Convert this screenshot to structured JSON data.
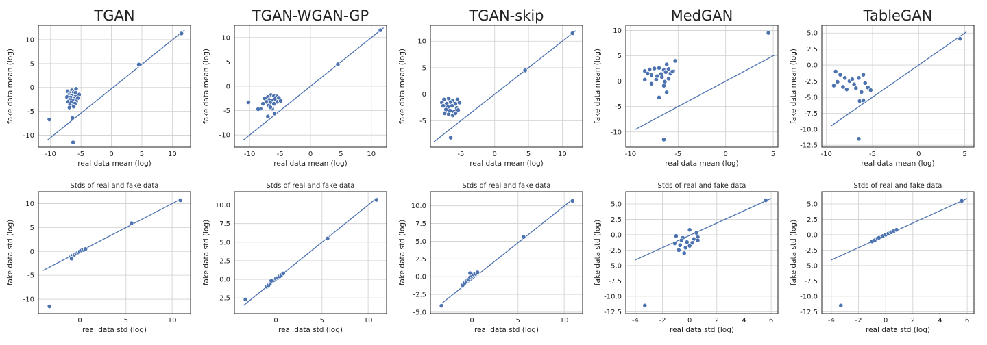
{
  "chart_data": [
    {
      "type": "scatter",
      "title": "TGAN",
      "xlabel": "real data mean (log)",
      "ylabel": "fake data mean (log)",
      "xlim": [
        -12,
        13
      ],
      "ylim": [
        -12.5,
        13
      ],
      "xticks": [
        -10,
        -5,
        0,
        5,
        10
      ],
      "yticks": [
        -10,
        -5,
        0,
        5,
        10
      ],
      "grid": true,
      "diagonal": [
        [
          -10.5,
          -11
        ],
        [
          12,
          12
        ]
      ],
      "points": [
        [
          -6.5,
          -0.6
        ],
        [
          -5.8,
          -0.3
        ],
        [
          -7.2,
          -0.8
        ],
        [
          -6.8,
          -1.2
        ],
        [
          -6.2,
          -1.0
        ],
        [
          -5.6,
          -1.4
        ],
        [
          -7.0,
          -1.6
        ],
        [
          -6.5,
          -1.7
        ],
        [
          -5.9,
          -1.9
        ],
        [
          -5.3,
          -1.5
        ],
        [
          -7.3,
          -2.0
        ],
        [
          -6.7,
          -2.1
        ],
        [
          -6.1,
          -2.3
        ],
        [
          -5.5,
          -2.2
        ],
        [
          -6.9,
          -2.6
        ],
        [
          -6.3,
          -2.7
        ],
        [
          -5.8,
          -2.9
        ],
        [
          -7.1,
          -3.0
        ],
        [
          -6.6,
          -3.2
        ],
        [
          -6.0,
          -3.4
        ],
        [
          -6.8,
          -3.7
        ],
        [
          -6.4,
          -3.9
        ],
        [
          -6.9,
          -4.2
        ],
        [
          -6.2,
          -4.0
        ],
        [
          -5.9,
          -1.1
        ],
        [
          -10.2,
          -6.7
        ],
        [
          -6.4,
          -6.4
        ],
        [
          -6.3,
          -11.5
        ],
        [
          4.5,
          4.8
        ],
        [
          11.5,
          11.3
        ]
      ]
    },
    {
      "type": "scatter",
      "title": "TGAN-WGAN-GP",
      "xlabel": "real data mean (log)",
      "ylabel": "fake data mean (log)",
      "xlim": [
        -12.5,
        12.5
      ],
      "ylim": [
        -12.5,
        12.5
      ],
      "xticks": [
        -10,
        -5,
        0,
        5,
        10
      ],
      "yticks": [
        -10,
        -5,
        0,
        5,
        10
      ],
      "grid": true,
      "diagonal": [
        [
          -11,
          -11
        ],
        [
          12,
          12
        ]
      ],
      "points": [
        [
          -6.5,
          -1.8
        ],
        [
          -6.0,
          -2.0
        ],
        [
          -7.0,
          -2.2
        ],
        [
          -5.5,
          -2.1
        ],
        [
          -7.5,
          -2.5
        ],
        [
          -6.8,
          -2.8
        ],
        [
          -6.2,
          -3.0
        ],
        [
          -5.8,
          -2.6
        ],
        [
          -5.2,
          -2.4
        ],
        [
          -7.2,
          -3.2
        ],
        [
          -6.6,
          -3.4
        ],
        [
          -6.0,
          -3.6
        ],
        [
          -5.4,
          -3.2
        ],
        [
          -4.9,
          -3.0
        ],
        [
          -7.8,
          -3.6
        ],
        [
          -6.9,
          -4.0
        ],
        [
          -8.2,
          -4.6
        ],
        [
          -8.6,
          -4.7
        ],
        [
          -6.3,
          -4.6
        ],
        [
          -5.9,
          -5.6
        ],
        [
          -7.0,
          -6.2
        ],
        [
          -6.6,
          -4.3
        ],
        [
          -10.2,
          -3.3
        ],
        [
          4.5,
          4.5
        ],
        [
          11.5,
          11.5
        ]
      ]
    },
    {
      "type": "scatter",
      "title": "TGAN-skip",
      "xlabel": "real data mean (log)",
      "ylabel": "fake data mean (log)",
      "xlim": [
        -9.5,
        13
      ],
      "ylim": [
        -10,
        13
      ],
      "xticks": [
        -5,
        0,
        5,
        10
      ],
      "yticks": [
        -5,
        0,
        5,
        10
      ],
      "grid": true,
      "diagonal": [
        [
          -9,
          -9
        ],
        [
          12,
          12
        ]
      ],
      "points": [
        [
          -7.5,
          -1.0
        ],
        [
          -6.8,
          -0.8
        ],
        [
          -6.2,
          -1.2
        ],
        [
          -5.5,
          -1.0
        ],
        [
          -7.8,
          -1.6
        ],
        [
          -7.1,
          -1.8
        ],
        [
          -6.5,
          -1.5
        ],
        [
          -5.8,
          -1.8
        ],
        [
          -5.2,
          -1.6
        ],
        [
          -7.6,
          -2.2
        ],
        [
          -6.9,
          -2.4
        ],
        [
          -6.3,
          -2.2
        ],
        [
          -5.6,
          -2.6
        ],
        [
          -7.2,
          -2.9
        ],
        [
          -6.6,
          -3.1
        ],
        [
          -6.0,
          -3.3
        ],
        [
          -5.4,
          -3.0
        ],
        [
          -7.4,
          -3.6
        ],
        [
          -6.8,
          -3.8
        ],
        [
          -6.2,
          -4.0
        ],
        [
          -5.8,
          -3.6
        ],
        [
          -6.5,
          -8.2
        ],
        [
          4.5,
          4.5
        ],
        [
          11.5,
          11.5
        ]
      ]
    },
    {
      "type": "scatter",
      "title": "MedGAN",
      "xlabel": "real data mean (log)",
      "ylabel": "fake data mean (log)",
      "xlim": [
        -10.5,
        5.5
      ],
      "ylim": [
        -13,
        11
      ],
      "xticks": [
        -10,
        -5,
        0,
        5
      ],
      "yticks": [
        -10,
        -5,
        0,
        5,
        10
      ],
      "grid": true,
      "diagonal": [
        [
          -9.5,
          -9.5
        ],
        [
          5.2,
          5.2
        ]
      ],
      "points": [
        [
          -8.5,
          2.0
        ],
        [
          -8.0,
          2.3
        ],
        [
          -7.5,
          2.5
        ],
        [
          -7.0,
          2.6
        ],
        [
          -6.5,
          2.2
        ],
        [
          -6.0,
          2.4
        ],
        [
          -5.5,
          2.0
        ],
        [
          -8.2,
          1.5
        ],
        [
          -7.8,
          1.2
        ],
        [
          -7.2,
          1.0
        ],
        [
          -6.8,
          1.4
        ],
        [
          -6.3,
          1.8
        ],
        [
          -5.8,
          1.5
        ],
        [
          -5.3,
          4.0
        ],
        [
          -6.2,
          3.3
        ],
        [
          -6.7,
          0.8
        ],
        [
          -7.3,
          0.3
        ],
        [
          -8.5,
          0.3
        ],
        [
          -6.0,
          0.5
        ],
        [
          -5.6,
          1.9
        ],
        [
          -6.4,
          -0.1
        ],
        [
          -7.8,
          -0.5
        ],
        [
          -6.5,
          -0.9
        ],
        [
          -6.2,
          -2.2
        ],
        [
          -7.0,
          -3.2
        ],
        [
          -6.5,
          -11.5
        ],
        [
          4.5,
          9.5
        ]
      ]
    },
    {
      "type": "scatter",
      "title": "TableGAN",
      "xlabel": "real data mean (log)",
      "ylabel": "fake data mean (log)",
      "xlim": [
        -10.5,
        6
      ],
      "ylim": [
        -12.8,
        6.2
      ],
      "xticks": [
        -10,
        -5,
        0,
        5
      ],
      "yticks": [
        -12.5,
        -10.0,
        -7.5,
        -5.0,
        -2.5,
        0.0,
        2.5,
        5.0
      ],
      "grid": true,
      "diagonal": [
        [
          -9.5,
          -9.5
        ],
        [
          5.2,
          5.2
        ]
      ],
      "points": [
        [
          -9.0,
          -1.0
        ],
        [
          -8.5,
          -1.5
        ],
        [
          -8.0,
          -2.0
        ],
        [
          -7.5,
          -2.5
        ],
        [
          -7.0,
          -3.0
        ],
        [
          -6.5,
          -2.0
        ],
        [
          -6.0,
          -1.5
        ],
        [
          -5.5,
          -3.5
        ],
        [
          -9.2,
          -3.2
        ],
        [
          -8.8,
          -2.6
        ],
        [
          -8.2,
          -3.4
        ],
        [
          -7.8,
          -3.8
        ],
        [
          -7.2,
          -2.2
        ],
        [
          -6.8,
          -3.6
        ],
        [
          -6.2,
          -4.2
        ],
        [
          -5.8,
          -2.8
        ],
        [
          -5.2,
          -3.9
        ],
        [
          -6.4,
          -5.6
        ],
        [
          -6.0,
          -5.5
        ],
        [
          -6.5,
          -11.5
        ],
        [
          4.5,
          4.1
        ]
      ]
    },
    {
      "type": "scatter",
      "title": "Stds of real and fake data",
      "xlabel": "real data std (log)",
      "ylabel": "fake data std (log)",
      "xlim": [
        -4.5,
        12
      ],
      "ylim": [
        -13,
        12.5
      ],
      "xticks": [
        0,
        5,
        10
      ],
      "yticks": [
        -10,
        -5,
        0,
        5,
        10
      ],
      "grid": true,
      "diagonal": [
        [
          -4,
          -4
        ],
        [
          11,
          11
        ]
      ],
      "points": [
        [
          -1.0,
          -1.2
        ],
        [
          -0.8,
          -0.9
        ],
        [
          -0.6,
          -0.7
        ],
        [
          -0.4,
          -0.4
        ],
        [
          -0.2,
          -0.2
        ],
        [
          0.0,
          0.0
        ],
        [
          0.2,
          0.2
        ],
        [
          0.4,
          0.3
        ],
        [
          0.6,
          0.5
        ],
        [
          -0.9,
          -1.5
        ],
        [
          5.6,
          5.9
        ],
        [
          10.9,
          10.7
        ],
        [
          -3.3,
          -11.5
        ]
      ]
    },
    {
      "type": "scatter",
      "title": "Stds of real and fake data",
      "xlabel": "real data std (log)",
      "ylabel": "fake data std (log)",
      "xlim": [
        -4.5,
        12
      ],
      "ylim": [
        -4.6,
        11.8
      ],
      "xticks": [
        0,
        5,
        10
      ],
      "yticks": [
        -2.5,
        0.0,
        2.5,
        5.0,
        7.5,
        10.0
      ],
      "grid": true,
      "diagonal": [
        [
          -3.5,
          -3.5
        ],
        [
          11,
          11
        ]
      ],
      "points": [
        [
          -1.0,
          -1.0
        ],
        [
          -0.8,
          -0.8
        ],
        [
          -0.6,
          -0.5
        ],
        [
          -0.4,
          -0.3
        ],
        [
          -0.2,
          -0.1
        ],
        [
          0.0,
          0.1
        ],
        [
          0.2,
          0.2
        ],
        [
          0.4,
          0.4
        ],
        [
          0.6,
          0.6
        ],
        [
          0.8,
          0.8
        ],
        [
          -0.5,
          -0.2
        ],
        [
          -3.3,
          -2.7
        ],
        [
          5.6,
          5.5
        ],
        [
          10.9,
          10.7
        ]
      ]
    },
    {
      "type": "scatter",
      "title": "Stds of real and fake data",
      "xlabel": "real data std (log)",
      "ylabel": "fake data std (log)",
      "xlim": [
        -4.5,
        12
      ],
      "ylim": [
        -5.2,
        12
      ],
      "xticks": [
        0,
        5,
        10
      ],
      "yticks": [
        -5.0,
        -2.5,
        0.0,
        2.5,
        5.0,
        7.5,
        10.0
      ],
      "grid": true,
      "diagonal": [
        [
          -3.5,
          -4
        ],
        [
          11,
          11
        ]
      ],
      "points": [
        [
          -1.0,
          -1.2
        ],
        [
          -0.8,
          -0.9
        ],
        [
          -0.6,
          -0.6
        ],
        [
          -0.4,
          -0.4
        ],
        [
          -0.2,
          -0.1
        ],
        [
          0.0,
          0.1
        ],
        [
          0.2,
          0.3
        ],
        [
          0.4,
          0.4
        ],
        [
          0.6,
          0.6
        ],
        [
          -0.2,
          0.5
        ],
        [
          -3.3,
          -4.1
        ],
        [
          5.6,
          5.6
        ],
        [
          10.9,
          10.7
        ]
      ]
    },
    {
      "type": "scatter",
      "title": "Stds of real and fake data",
      "xlabel": "real data std (log)",
      "ylabel": "fake data std (log)",
      "xlim": [
        -4.7,
        6.5
      ],
      "ylim": [
        -12.8,
        7
      ],
      "xticks": [
        -4,
        -2,
        0,
        2,
        4,
        6
      ],
      "yticks": [
        -12.5,
        -10.0,
        -7.5,
        -5.0,
        -2.5,
        0.0,
        2.5,
        5.0
      ],
      "grid": true,
      "diagonal": [
        [
          -4,
          -4.1
        ],
        [
          6,
          5.9
        ]
      ],
      "points": [
        [
          -1.0,
          -0.2
        ],
        [
          -0.5,
          -0.5
        ],
        [
          0.0,
          0.8
        ],
        [
          0.5,
          0.3
        ],
        [
          0.6,
          -0.4
        ],
        [
          -0.6,
          -0.9
        ],
        [
          -0.2,
          -1.2
        ],
        [
          0.3,
          -0.7
        ],
        [
          -1.1,
          -1.4
        ],
        [
          -0.7,
          -1.7
        ],
        [
          0.0,
          -1.8
        ],
        [
          -0.3,
          -2.1
        ],
        [
          -0.8,
          -2.5
        ],
        [
          -0.4,
          -3.0
        ],
        [
          0.2,
          -1.3
        ],
        [
          0.6,
          -0.9
        ],
        [
          5.6,
          5.6
        ],
        [
          -3.3,
          -11.5
        ]
      ]
    },
    {
      "type": "scatter",
      "title": "Stds of real and fake data",
      "xlabel": "real data std (log)",
      "ylabel": "fake data std (log)",
      "xlim": [
        -4.7,
        6.5
      ],
      "ylim": [
        -12.8,
        7
      ],
      "xticks": [
        -4,
        -2,
        0,
        2,
        4,
        6
      ],
      "yticks": [
        -12.5,
        -10.0,
        -7.5,
        -5.0,
        -2.5,
        0.0,
        2.5,
        5.0
      ],
      "grid": true,
      "diagonal": [
        [
          -4,
          -4.1
        ],
        [
          6,
          5.9
        ]
      ],
      "points": [
        [
          -1.0,
          -1.1
        ],
        [
          -0.8,
          -0.9
        ],
        [
          -0.6,
          -0.6
        ],
        [
          -0.4,
          -0.4
        ],
        [
          -0.2,
          -0.2
        ],
        [
          0.0,
          0.0
        ],
        [
          0.2,
          0.2
        ],
        [
          0.4,
          0.4
        ],
        [
          0.6,
          0.6
        ],
        [
          0.8,
          0.8
        ],
        [
          -0.5,
          -0.5
        ],
        [
          5.6,
          5.5
        ],
        [
          -3.3,
          -11.5
        ]
      ]
    }
  ]
}
